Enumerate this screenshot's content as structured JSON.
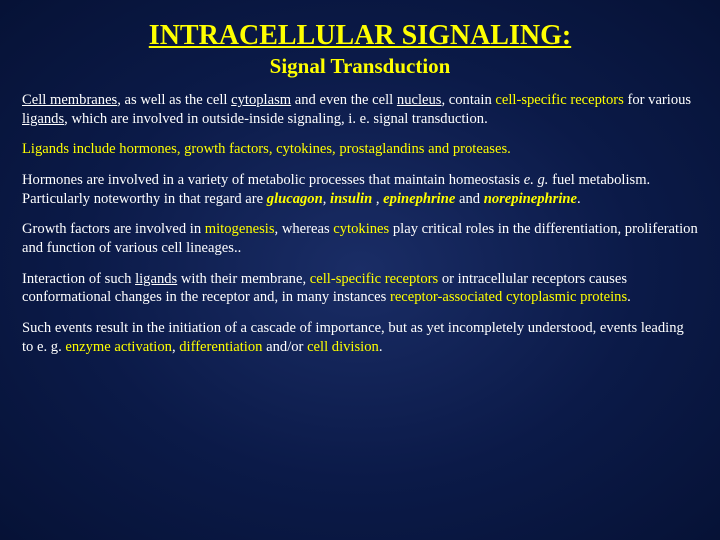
{
  "colors": {
    "background_center": "#1a2d66",
    "background_mid": "#0b1a48",
    "background_edge": "#061236",
    "title_color": "#ffff00",
    "body_text_color": "#ffffff",
    "highlight_color": "#ffff00"
  },
  "typography": {
    "family": "Times New Roman",
    "title_size_pt": 28,
    "subtitle_size_pt": 21,
    "body_size_pt": 14.6,
    "line_height": 1.28
  },
  "title": "INTRACELLULAR SIGNALING:",
  "subtitle": "Signal Transduction",
  "p1": {
    "s1": "Cell membranes",
    "s2": ", as well as the cell ",
    "s3": "cytoplasm",
    "s4": " and even the cell ",
    "s5": "nucleus",
    "s6": ", contain ",
    "s7": "cell-specific receptors",
    "s8": " for various ",
    "s9": "ligands",
    "s10": ", which are involved in outside-inside signaling, i. e. signal transduction."
  },
  "p2": {
    "s1": "Ligands include hormones, growth factors, cytokines, prostaglandins and proteases."
  },
  "p3": {
    "s1": "Hormones are involved in a variety of metabolic processes that maintain homeostasis ",
    "s2": "e. g. ",
    "s3": "fuel metabolism.",
    "br": " ",
    "s4": "Particularly noteworthy in that regard are ",
    "s5": "glucagon",
    "s5a": ", ",
    "s6": "insulin",
    "s6a": " , ",
    "s7": "epinephrine",
    "s8": " and ",
    "s9": "norepinephrine",
    "s10": "."
  },
  "p4": {
    "s1": "Growth factors are involved in ",
    "s2": "mitogenesis",
    "s3": ", whereas ",
    "s4": "cytokines",
    "s5": " play critical roles in the differentiation, proliferation and function of various cell lineages.."
  },
  "p5": {
    "s1": "Interaction of such ",
    "s2": "ligands",
    "s3": " with their membrane, ",
    "s4": "cell-specific receptors",
    "s5": " or intracellular receptors causes conformational changes in the receptor and, in many instances ",
    "s6": "receptor-associated cytoplasmic proteins",
    "s7": "."
  },
  "p6": {
    "s1": "Such events result in the initiation of a cascade of importance, but as yet incompletely understood, events leading to e. g. ",
    "s2": "enzyme activation",
    "s3": ", ",
    "s4": "differentiation",
    "s5": " and/or ",
    "s6": "cell division",
    "s7": "."
  }
}
